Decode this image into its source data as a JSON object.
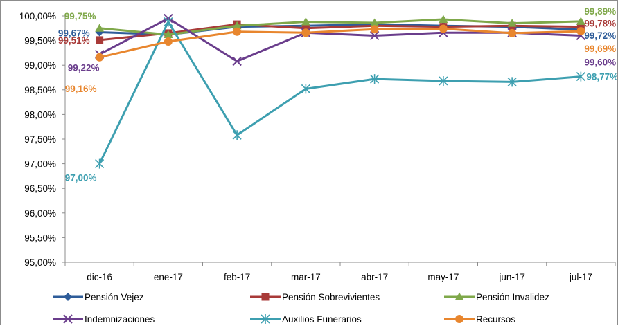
{
  "chart_data": {
    "type": "line",
    "title": "",
    "xlabel": "",
    "ylabel": "",
    "categories": [
      "dic-16",
      "ene-17",
      "feb-17",
      "mar-17",
      "abr-17",
      "may-17",
      "jun-17",
      "jul-17"
    ],
    "ylim": [
      95.0,
      100.0
    ],
    "ytick_labels": [
      "95,00%",
      "95,50%",
      "96,00%",
      "96,50%",
      "97,00%",
      "97,50%",
      "98,00%",
      "98,50%",
      "99,00%",
      "99,50%",
      "100,00%"
    ],
    "grid": false,
    "legend_position": "bottom",
    "series": [
      {
        "name": "Pensión Vejez",
        "color": "#2e5c99",
        "marker": "diamond",
        "values": [
          99.67,
          99.62,
          99.78,
          99.8,
          99.83,
          99.8,
          99.78,
          99.72
        ]
      },
      {
        "name": "Pensión Sobrevivientes",
        "color": "#a83a38",
        "marker": "square",
        "values": [
          99.51,
          99.65,
          99.83,
          99.75,
          99.8,
          99.78,
          99.8,
          99.78
        ]
      },
      {
        "name": "Pensión Invalidez",
        "color": "#7fa84a",
        "marker": "triangle",
        "values": [
          99.75,
          99.62,
          99.8,
          99.88,
          99.86,
          99.93,
          99.85,
          99.89
        ]
      },
      {
        "name": "Indemnizaciones",
        "color": "#6a3d8c",
        "marker": "x",
        "values": [
          99.22,
          99.95,
          99.08,
          99.66,
          99.6,
          99.66,
          99.66,
          99.6
        ]
      },
      {
        "name": "Auxilios Funerarios",
        "color": "#3d9fb0",
        "marker": "star",
        "values": [
          97.0,
          99.88,
          97.58,
          98.52,
          98.72,
          98.68,
          98.66,
          98.77
        ]
      },
      {
        "name": "Recursos",
        "color": "#e8862e",
        "marker": "circle",
        "values": [
          99.16,
          99.48,
          99.68,
          99.66,
          99.73,
          99.74,
          99.65,
          99.69
        ]
      }
    ],
    "data_labels": [
      {
        "text": "99,75%",
        "series": 2,
        "index": 0
      },
      {
        "text": "99,67%",
        "series": 0,
        "index": 0
      },
      {
        "text": "99,51%",
        "series": 1,
        "index": 0
      },
      {
        "text": "99,22%",
        "series": 3,
        "index": 0
      },
      {
        "text": "99,16%",
        "series": 5,
        "index": 0
      },
      {
        "text": "97,00%",
        "series": 4,
        "index": 0
      },
      {
        "text": "99,89%",
        "series": 2,
        "index": 7
      },
      {
        "text": "99,78%",
        "series": 1,
        "index": 7
      },
      {
        "text": "99,72%",
        "series": 0,
        "index": 7
      },
      {
        "text": "99,69%",
        "series": 5,
        "index": 7
      },
      {
        "text": "99,60%",
        "series": 3,
        "index": 7
      },
      {
        "text": "98,77%",
        "series": 4,
        "index": 7
      }
    ]
  }
}
